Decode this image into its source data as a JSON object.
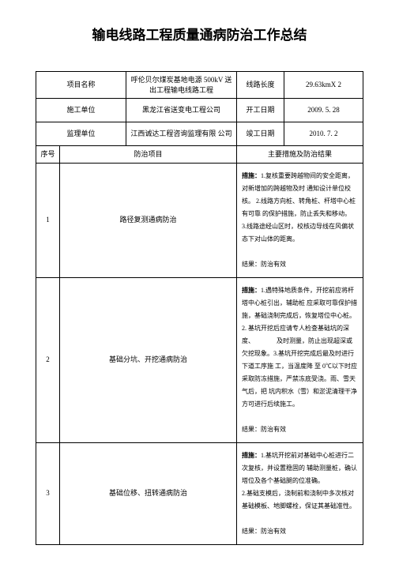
{
  "title": "输电线路工程质量通病防治工作总结",
  "info": {
    "row1": {
      "label1": "项目名称",
      "val1": "呼伦贝尔煤炭基地电源 500kV 送出工程输电线路工程",
      "label2": "线路长度",
      "val2": "29.63kmX 2"
    },
    "row2": {
      "label1": "施工单位",
      "val1": "黑龙江省送变电工程公司",
      "label2": "开工日期",
      "val2": "2009. 5. 28"
    },
    "row3": {
      "label1": "监理单位",
      "val1": "江西诚达工程咨询监理有限 公司",
      "label2": "竣工日期",
      "val2": "2010. 7. 2"
    }
  },
  "headers": {
    "seq": "序号",
    "item": "防治项目",
    "result": "主要措施及防治结果"
  },
  "rows": [
    {
      "seq": "1",
      "item": "路径复测通病防治",
      "content_prefix": "措施：",
      "content_body": "1.复核重要跨越物间的安全距离，对新增加的跨越物及时 通知设计单位校核。 2.线路方向桩、转角桩、杆塔中心桩有可靠 的保护措施，防止丢失和移动。　　　　　　　　　3.线路途经山区时，校核边导线在风偏状态下对山体的距离。",
      "content_suffix": "结果：防治有效"
    },
    {
      "seq": "2",
      "item": "基础分坑、开挖通病防治",
      "content_prefix": "措施：",
      "content_body": "1.遇特殊地质条件，开挖前应将杆塔中心桩引出，辅助桩 应采取可靠保护措施，基础浇制完成后，恢复塔位中心桩。　　　　　　　　2. 基坑开挖后应请专人检查基础坑的深度、　　　　及时测量，防止出现超深或欠挖现象。3.基坑开挖完成后最及时进行下道工序施 工，当温度降 至 0℃以下时应采取防冻措施，严禁冻底受浇。雨、雪天气后，把 坑内积水（雪）和淤泥清理干净方可进行后续施工。",
      "content_suffix": "结果：防治有效"
    },
    {
      "seq": "3",
      "item": "基础位移、扭转通病防治",
      "content_prefix": "措施：",
      "content_body": "1.基坑开挖前对基础中心桩进行二次复核，并设置稳固的 辅助测量桩，确认塔位及各个基础腿的位准确。　　　　　　　　　2.基础支模后，浇制前和浇制中多次核对基础模板、地脚螺栓，保证其基础准性。",
      "content_suffix": "结果：防治有效"
    }
  ]
}
